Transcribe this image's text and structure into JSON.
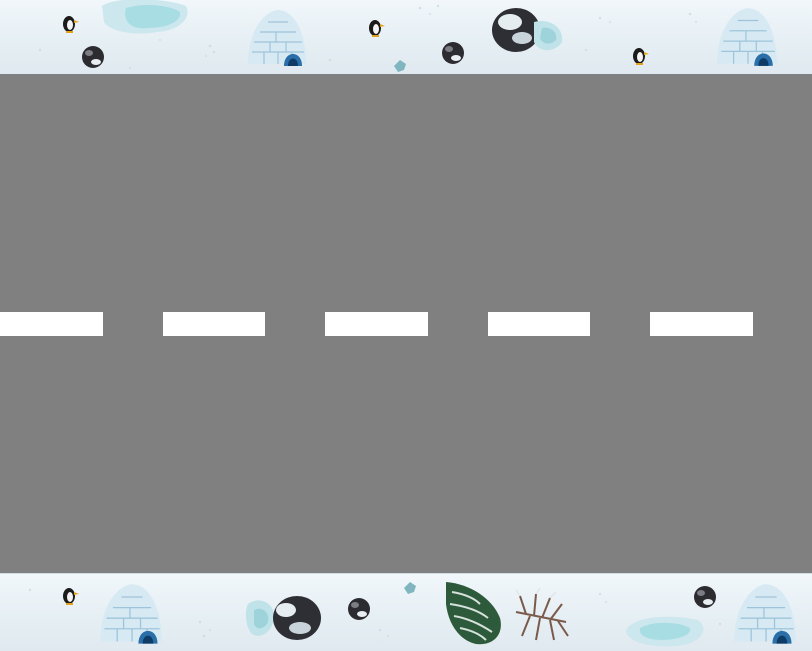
{
  "scene": {
    "type": "top-down road game",
    "road_color": "#808080",
    "lane_marking_color": "#ffffff",
    "snow_color": "#eaf2f6",
    "lane_markings": 5
  },
  "top_strip": {
    "decorations": [
      "ice-pond-icon",
      "penguin-icon",
      "rock-icon",
      "igloo-icon",
      "penguin-icon",
      "rock-icon",
      "snow-boulder-icon",
      "ice-crystal-icon",
      "penguin-icon",
      "igloo-icon"
    ]
  },
  "bottom_strip": {
    "decorations": [
      "penguin-icon",
      "igloo-icon",
      "ice-crystal-icon",
      "snow-boulder-icon",
      "rock-icon",
      "pine-tree-icon",
      "bare-bush-icon",
      "ice-pond-icon",
      "rock-icon",
      "igloo-icon"
    ]
  }
}
